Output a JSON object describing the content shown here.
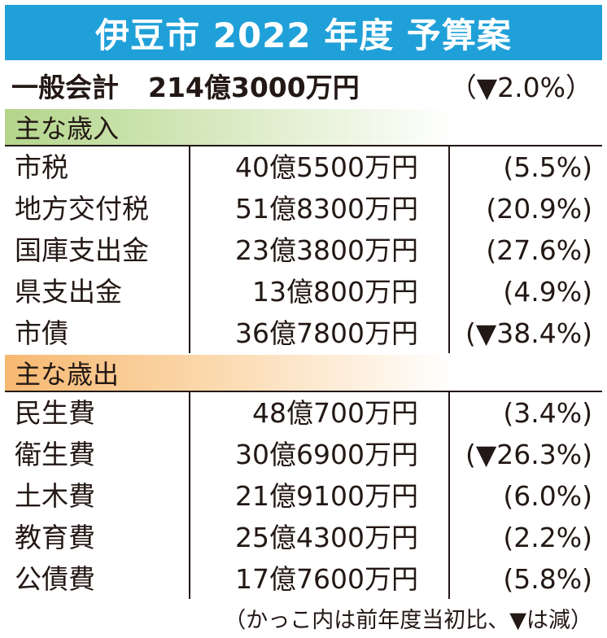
{
  "title": "伊豆市 2022 年度 予算案",
  "general": {
    "label": "一般会計",
    "amount": "214億3000万円",
    "change": "（▼2.0%）"
  },
  "revenue": {
    "heading": "主な歳入",
    "rows": [
      {
        "name": "市税",
        "amount": "40億5500万円",
        "change": "(5.5%)"
      },
      {
        "name": "地方交付税",
        "amount": "51億8300万円",
        "change": "(20.9%)"
      },
      {
        "name": "国庫支出金",
        "amount": "23億3800万円",
        "change": "(27.6%)"
      },
      {
        "name": "県支出金",
        "amount": "13億800万円",
        "change": "(4.9%)"
      },
      {
        "name": "市債",
        "amount": "36億7800万円",
        "change": "(▼38.4%)"
      }
    ]
  },
  "expenditure": {
    "heading": "主な歳出",
    "rows": [
      {
        "name": "民生費",
        "amount": "48億700万円",
        "change": "(3.4%)"
      },
      {
        "name": "衛生費",
        "amount": "30億6900万円",
        "change": "(▼26.3%)"
      },
      {
        "name": "土木費",
        "amount": "21億9100万円",
        "change": "(6.0%)"
      },
      {
        "name": "教育費",
        "amount": "25億4300万円",
        "change": "(2.2%)"
      },
      {
        "name": "公債費",
        "amount": "17億7600万円",
        "change": "(5.8%)"
      }
    ]
  },
  "colors": {
    "title_bg": "#20a0d8",
    "revenue_head": "#b3d58b",
    "expenditure_head": "#f7b871"
  },
  "footnote": "（かっこ内は前年度当初比、▼は減）"
}
